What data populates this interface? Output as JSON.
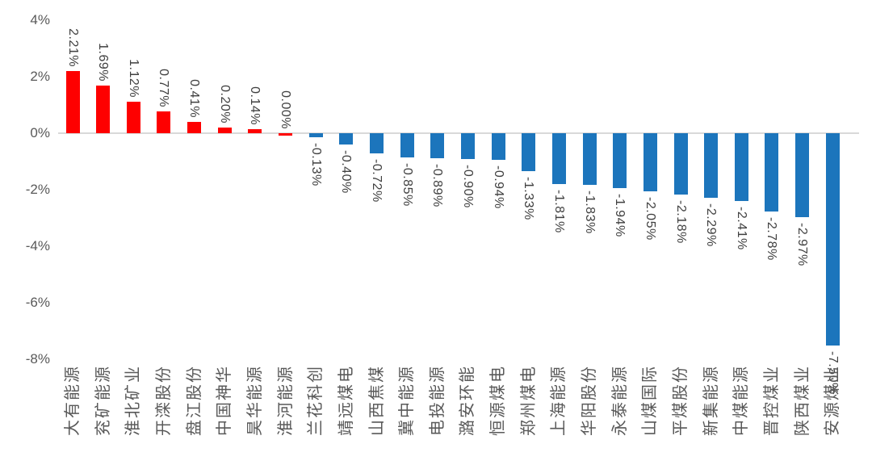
{
  "chart_data": {
    "type": "bar",
    "title": "",
    "xlabel": "",
    "ylabel": "",
    "categories": [
      "大有能源",
      "兖矿能源",
      "淮北矿业",
      "开滦股份",
      "盘江股份",
      "中国神华",
      "昊华能源",
      "淮河能源",
      "兰花科创",
      "靖远煤电",
      "山西焦煤",
      "冀中能源",
      "电投能源",
      "潞安环能",
      "恒源煤电",
      "郑州煤电",
      "上海能源",
      "华阳股份",
      "永泰能源",
      "山煤国际",
      "平煤股份",
      "新集能源",
      "中煤能源",
      "晋控煤业",
      "陕西煤业",
      "安源煤业"
    ],
    "values": [
      2.21,
      1.69,
      1.12,
      0.77,
      0.41,
      0.2,
      0.14,
      0.0,
      -0.13,
      -0.4,
      -0.72,
      -0.85,
      -0.89,
      -0.9,
      -0.94,
      -1.33,
      -1.81,
      -1.83,
      -1.94,
      -2.05,
      -2.18,
      -2.29,
      -2.41,
      -2.78,
      -2.97,
      -7.5
    ],
    "value_labels": [
      "2.21%",
      "1.69%",
      "1.12%",
      "0.77%",
      "0.41%",
      "0.20%",
      "0.14%",
      "0.00%",
      "-0.13%",
      "-0.40%",
      "-0.72%",
      "-0.85%",
      "-0.89%",
      "-0.90%",
      "-0.94%",
      "-1.33%",
      "-1.81%",
      "-1.83%",
      "-1.94%",
      "-2.05%",
      "-2.18%",
      "-2.29%",
      "-2.41%",
      "-2.78%",
      "-2.97%",
      "-7.50%"
    ],
    "yticks": [
      "4%",
      "2%",
      "0%",
      "-2%",
      "-4%",
      "-6%",
      "-8%"
    ],
    "ytick_values": [
      4,
      2,
      0,
      -2,
      -4,
      -6,
      -8
    ],
    "ylim": [
      -8,
      4
    ],
    "grid": false,
    "legend_position": "none",
    "colors": {
      "positive_bar": "#fe0000",
      "negative_bar": "#1c75bc",
      "zero_line": "#d9d9d9",
      "value_label": "#404040",
      "tick_label": "#595959",
      "background": "#ffffff"
    }
  }
}
